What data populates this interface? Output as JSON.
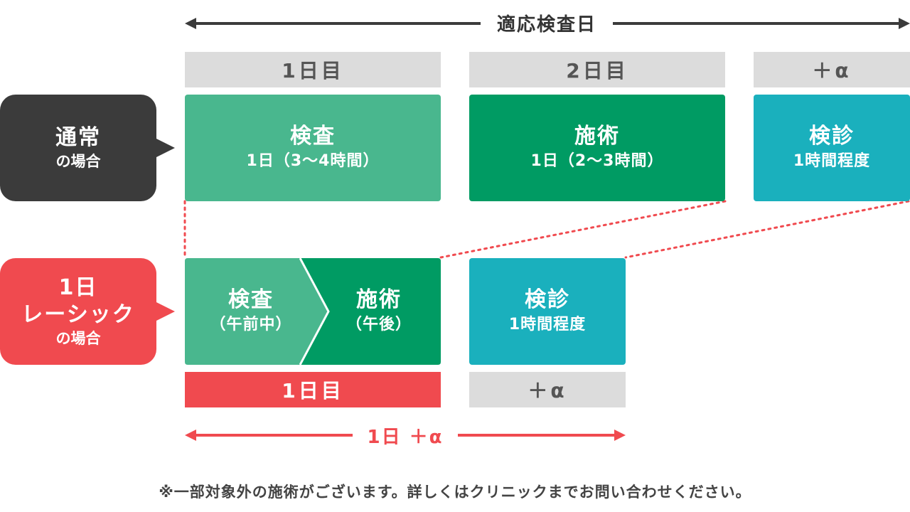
{
  "colors": {
    "dark": "#3b3b3b",
    "red": "#f04a4f",
    "green_light": "#49b78e",
    "green_dark": "#009b63",
    "teal": "#1ab0bd",
    "gray_tag": "#dcdcdc"
  },
  "top_arrow": {
    "label": "適応検査日"
  },
  "top_days": [
    {
      "label": "1日目"
    },
    {
      "label": "2日目"
    },
    {
      "label": "＋α"
    }
  ],
  "normal": {
    "label_main": "通常",
    "label_sub": "の場合",
    "boxes": [
      {
        "title": "検査",
        "sub": "1日（3〜4時間）"
      },
      {
        "title": "施術",
        "sub": "1日（2〜3時間）"
      },
      {
        "title": "検診",
        "sub": "1時間程度"
      }
    ]
  },
  "oneday": {
    "label_line1": "1日",
    "label_line2": "レーシック",
    "label_sub": "の場合",
    "exam": {
      "title": "検査",
      "sub": "（午前中）"
    },
    "surgery": {
      "title": "施術",
      "sub": "（午後）"
    },
    "checkup": {
      "title": "検診",
      "sub": "1時間程度"
    },
    "days": [
      {
        "label": "1日目"
      },
      {
        "label": "＋α"
      }
    ]
  },
  "bottom_arrow": {
    "label": "1日 ＋α"
  },
  "note": "※一部対象外の施術がございます。詳しくはクリニックまでお問い合わせください。"
}
